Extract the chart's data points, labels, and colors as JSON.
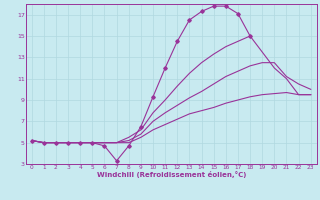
{
  "title": "",
  "xlabel": "Windchill (Refroidissement éolien,°C)",
  "ylabel": "",
  "bg_color": "#c8eaf0",
  "grid_color": "#b0d8e0",
  "line_color": "#993399",
  "xlim": [
    -0.5,
    23.5
  ],
  "ylim": [
    3,
    18
  ],
  "xticks": [
    0,
    1,
    2,
    3,
    4,
    5,
    6,
    7,
    8,
    9,
    10,
    11,
    12,
    13,
    14,
    15,
    16,
    17,
    18,
    19,
    20,
    21,
    22,
    23
  ],
  "yticks": [
    3,
    5,
    7,
    9,
    11,
    13,
    15,
    17
  ],
  "lines": [
    {
      "x": [
        0,
        1,
        2,
        3,
        4,
        5,
        6,
        7,
        8,
        9,
        10,
        11,
        12,
        13,
        14,
        15,
        16,
        17,
        18
      ],
      "y": [
        5.2,
        5.0,
        5.0,
        5.0,
        5.0,
        5.0,
        4.7,
        3.3,
        4.7,
        6.5,
        9.3,
        12.0,
        14.5,
        16.5,
        17.3,
        17.8,
        17.8,
        17.1,
        15.0
      ],
      "has_markers": true
    },
    {
      "x": [
        0,
        1,
        2,
        3,
        4,
        5,
        6,
        7,
        8,
        9,
        10,
        11,
        12,
        13,
        14,
        15,
        16,
        17,
        18,
        19,
        20,
        21,
        22,
        23
      ],
      "y": [
        5.2,
        5.0,
        5.0,
        5.0,
        5.0,
        5.0,
        5.0,
        5.0,
        5.5,
        6.2,
        7.8,
        9.0,
        10.3,
        11.5,
        12.5,
        13.3,
        14.0,
        14.5,
        15.0,
        13.5,
        12.0,
        11.0,
        9.5,
        9.5
      ],
      "has_markers": false
    },
    {
      "x": [
        0,
        1,
        2,
        3,
        4,
        5,
        6,
        7,
        8,
        9,
        10,
        11,
        12,
        13,
        14,
        15,
        16,
        17,
        18,
        19,
        20,
        21,
        22,
        23
      ],
      "y": [
        5.2,
        5.0,
        5.0,
        5.0,
        5.0,
        5.0,
        5.0,
        5.0,
        5.2,
        5.8,
        7.0,
        7.8,
        8.5,
        9.2,
        9.8,
        10.5,
        11.2,
        11.7,
        12.2,
        12.5,
        12.5,
        11.2,
        10.5,
        10.0
      ],
      "has_markers": false
    },
    {
      "x": [
        0,
        1,
        2,
        3,
        4,
        5,
        6,
        7,
        8,
        9,
        10,
        11,
        12,
        13,
        14,
        15,
        16,
        17,
        18,
        19,
        20,
        21,
        22,
        23
      ],
      "y": [
        5.2,
        5.0,
        5.0,
        5.0,
        5.0,
        5.0,
        5.0,
        5.0,
        5.0,
        5.5,
        6.2,
        6.7,
        7.2,
        7.7,
        8.0,
        8.3,
        8.7,
        9.0,
        9.3,
        9.5,
        9.6,
        9.7,
        9.5,
        9.5
      ],
      "has_markers": false
    }
  ]
}
